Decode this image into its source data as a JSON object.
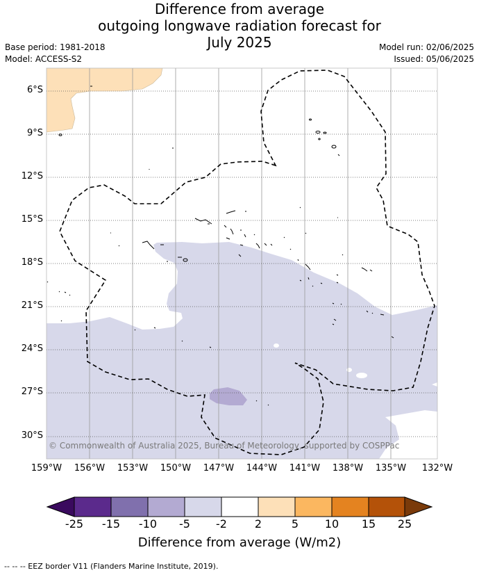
{
  "title": {
    "line1": "Difference from average",
    "line2": "outgoing longwave radiation forecast for",
    "line3": "July 2025"
  },
  "meta": {
    "base_period": "Base period: 1981-2018",
    "model": "Model: ACCESS-S2",
    "model_run": "Model run: 02/06/2025",
    "issued": "Issued: 05/06/2025"
  },
  "map": {
    "copyright": "© Commonwealth of Australia 2025, Bureau of Meteorology, supported by COSPPac",
    "lat_labels": [
      "6°S",
      "9°S",
      "12°S",
      "15°S",
      "18°S",
      "21°S",
      "24°S",
      "27°S",
      "30°S"
    ],
    "lon_labels": [
      "159°W",
      "156°W",
      "153°W",
      "150°W",
      "147°W",
      "144°W",
      "141°W",
      "138°W",
      "135°W",
      "132°W"
    ],
    "fill_colors": {
      "neg_light": "#d7d8ea",
      "neg_medium": "#b3aad2",
      "pos_light": "#fde0b8"
    }
  },
  "colorbar": {
    "ticks": [
      "-25",
      "-15",
      "-10",
      "-5",
      "-2",
      "2",
      "5",
      "10",
      "15",
      "25"
    ],
    "colors": [
      "#3a0a5e",
      "#5b2a8c",
      "#8070ad",
      "#b3aad2",
      "#d7d8ea",
      "#ffffff",
      "#fde0b8",
      "#fbb760",
      "#e48320",
      "#b45209",
      "#7a3a0a"
    ],
    "label": "Difference from average (W/m2)"
  },
  "footer": "--  --  -- EEZ border V11 (Flanders Marine Institute, 2019)."
}
